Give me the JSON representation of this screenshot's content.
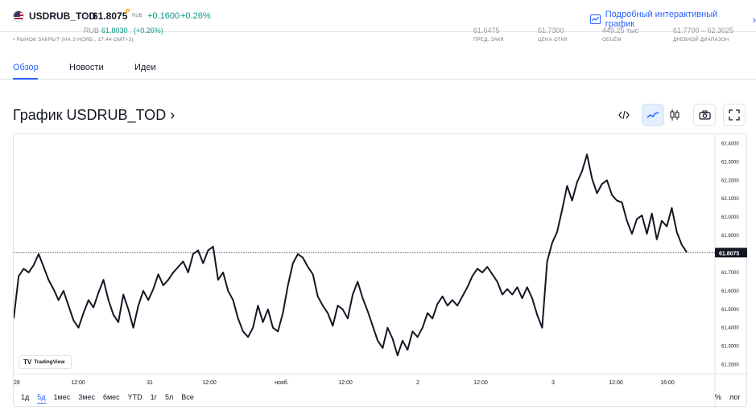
{
  "header": {
    "symbol": "USDRUB_TOD",
    "separator": "•",
    "price": "61.8075",
    "price_sup": "P",
    "currency": "RUB",
    "change": "+0.1600",
    "change_pct": "+0.26%",
    "detail_link": "Подробный интерактивный график",
    "up_color": "#089981",
    "accent_color": "#2962ff"
  },
  "subheader": {
    "partial_text_1": "RUB",
    "partial_value_1": "61.8030",
    "partial_value_2": "(+0.26%)",
    "market_status": "• РЫНОК ЗАКРЫТ (НА 3 НОЯБ., 17:44 GMT+3)",
    "stats": [
      {
        "label": "ПРЕД. ЗАКР.",
        "value": "61.6475"
      },
      {
        "label": "ЦЕНА ОТКР.",
        "value": "61.7300"
      },
      {
        "label": "ОБЪЁМ",
        "value": "449.25 тыс"
      },
      {
        "label": "ДНЕВНОЙ ДИАПАЗОН",
        "value": "61.7700 – 62.3025"
      }
    ]
  },
  "tabs": [
    {
      "label": "Обзор",
      "active": true
    },
    {
      "label": "Новости",
      "active": false
    },
    {
      "label": "Идеи",
      "active": false
    }
  ],
  "chart_section": {
    "title": "График USDRUB_TOD ›",
    "toolbar": [
      "embed-icon",
      "line-chart-icon",
      "candles-icon",
      "camera-icon",
      "fullscreen-icon"
    ]
  },
  "chart_data": {
    "type": "line",
    "last_price_label": "61.8075",
    "ylim": [
      61.15,
      62.45
    ],
    "y_ticks": [
      "62.4000",
      "62.3000",
      "62.2000",
      "62.1000",
      "62.0000",
      "61.9000",
      "61.8000",
      "61.7000",
      "61.6000",
      "61.5000",
      "61.4000",
      "61.3000",
      "61.2000"
    ],
    "x_ticks": [
      "28",
      "12:00",
      "31",
      "12:00",
      "нояб.",
      "12:00",
      "2",
      "12:00",
      "3",
      "12:00",
      "16:00"
    ],
    "series": [
      {
        "values": [
          61.45,
          61.68,
          61.72,
          61.7,
          61.74,
          61.8,
          61.73,
          61.66,
          61.61,
          61.55,
          61.6,
          61.52,
          61.44,
          61.4,
          61.48,
          61.55,
          61.51,
          61.59,
          61.66,
          61.55,
          61.47,
          61.43,
          61.58,
          61.5,
          61.4,
          61.52,
          61.6,
          61.55,
          61.61,
          61.69,
          61.63,
          61.66,
          61.7,
          61.73,
          61.76,
          61.7,
          61.8,
          61.82,
          61.75,
          61.82,
          61.84,
          61.66,
          61.7,
          61.6,
          61.55,
          61.45,
          61.38,
          61.35,
          61.4,
          61.52,
          61.43,
          61.5,
          61.4,
          61.38,
          61.48,
          61.63,
          61.75,
          61.8,
          61.78,
          61.73,
          61.69,
          61.57,
          61.52,
          61.48,
          61.41,
          61.52,
          61.5,
          61.45,
          61.58,
          61.65,
          61.56,
          61.49,
          61.41,
          61.33,
          61.29,
          61.4,
          61.34,
          61.25,
          61.33,
          61.28,
          61.38,
          61.35,
          61.4,
          61.48,
          61.45,
          61.53,
          61.57,
          61.52,
          61.55,
          61.52,
          61.57,
          61.62,
          61.68,
          61.72,
          61.7,
          61.73,
          61.69,
          61.65,
          61.58,
          61.61,
          61.58,
          61.62,
          61.56,
          61.62,
          61.56,
          61.47,
          61.4,
          61.76,
          61.86,
          61.92,
          62.04,
          62.17,
          62.09,
          62.19,
          62.25,
          62.34,
          62.21,
          62.13,
          62.18,
          62.2,
          62.12,
          62.09,
          62.08,
          61.98,
          61.91,
          61.99,
          62.01,
          61.91,
          62.02,
          61.88,
          61.98,
          61.95,
          62.05,
          61.92,
          61.85,
          61.81
        ]
      }
    ],
    "grid": false,
    "logo": "TradingView"
  },
  "range_selector": {
    "items": [
      "1д",
      "5д",
      "1мес",
      "3мес",
      "6мес",
      "YTD",
      "1г",
      "5л",
      "Все"
    ],
    "active": "5д",
    "percent_label": "%",
    "log_label": "лог"
  }
}
